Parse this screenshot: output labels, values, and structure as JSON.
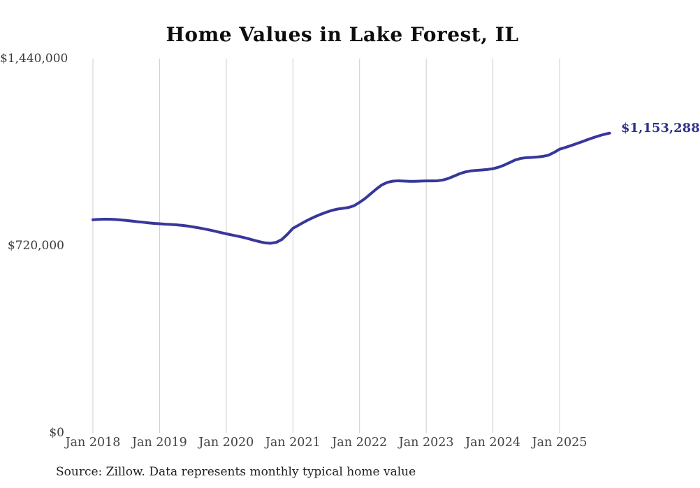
{
  "page": {
    "title": "Home Values in Lake Forest, IL",
    "source_note": "Source: Zillow. Data represents monthly typical home value"
  },
  "colors": {
    "line": "#37379b",
    "end_label": "#30308d",
    "grid": "#cccccc",
    "axis_text": "#3a3a3a",
    "background": "#ffffff"
  },
  "chart_data": {
    "type": "line",
    "title": "Home Values in Lake Forest, IL",
    "xlabel": "",
    "ylabel": "",
    "ylim": [
      0,
      1440000
    ],
    "grid": "vertical-only",
    "legend": "none",
    "y_ticks": [
      {
        "value": 0,
        "label": "$0"
      },
      {
        "value": 720000,
        "label": "$720,000"
      },
      {
        "value": 1440000,
        "label": "$1,440,000"
      }
    ],
    "x_ticks": [
      {
        "month_index": 0,
        "label": "Jan 2018"
      },
      {
        "month_index": 12,
        "label": "Jan 2019"
      },
      {
        "month_index": 24,
        "label": "Jan 2020"
      },
      {
        "month_index": 36,
        "label": "Jan 2021"
      },
      {
        "month_index": 48,
        "label": "Jan 2022"
      },
      {
        "month_index": 60,
        "label": "Jan 2023"
      },
      {
        "month_index": 72,
        "label": "Jan 2024"
      },
      {
        "month_index": 84,
        "label": "Jan 2025"
      }
    ],
    "x_start_month": "Jan 2018",
    "x_end_month": "Oct 2025",
    "end_point_label": "$1,153,288",
    "end_value": 1153288,
    "series": [
      {
        "name": "Monthly typical home value",
        "values": [
          820000,
          821500,
          822000,
          822000,
          821000,
          819500,
          817500,
          815000,
          812500,
          810500,
          808000,
          806000,
          804500,
          803000,
          802000,
          800500,
          798500,
          796000,
          792500,
          789000,
          785000,
          780500,
          776000,
          771000,
          766000,
          761500,
          757000,
          752500,
          747000,
          741000,
          735500,
          731000,
          729500,
          733000,
          744000,
          764000,
          787000,
          799000,
          811000,
          822000,
          832000,
          841000,
          849000,
          856000,
          861000,
          864000,
          867000,
          874000,
          887000,
          902000,
          920000,
          938000,
          954000,
          964000,
          968500,
          970000,
          969000,
          968000,
          968000,
          969000,
          969500,
          969500,
          970000,
          973000,
          979000,
          988000,
          997000,
          1004000,
          1008000,
          1010000,
          1011500,
          1013500,
          1016500,
          1022000,
          1030000,
          1040000,
          1050000,
          1056000,
          1059000,
          1060000,
          1061500,
          1064000,
          1068500,
          1079000,
          1091500,
          1098000,
          1105000,
          1112500,
          1120000,
          1128000,
          1135500,
          1142500,
          1148500,
          1153288
        ]
      }
    ]
  }
}
